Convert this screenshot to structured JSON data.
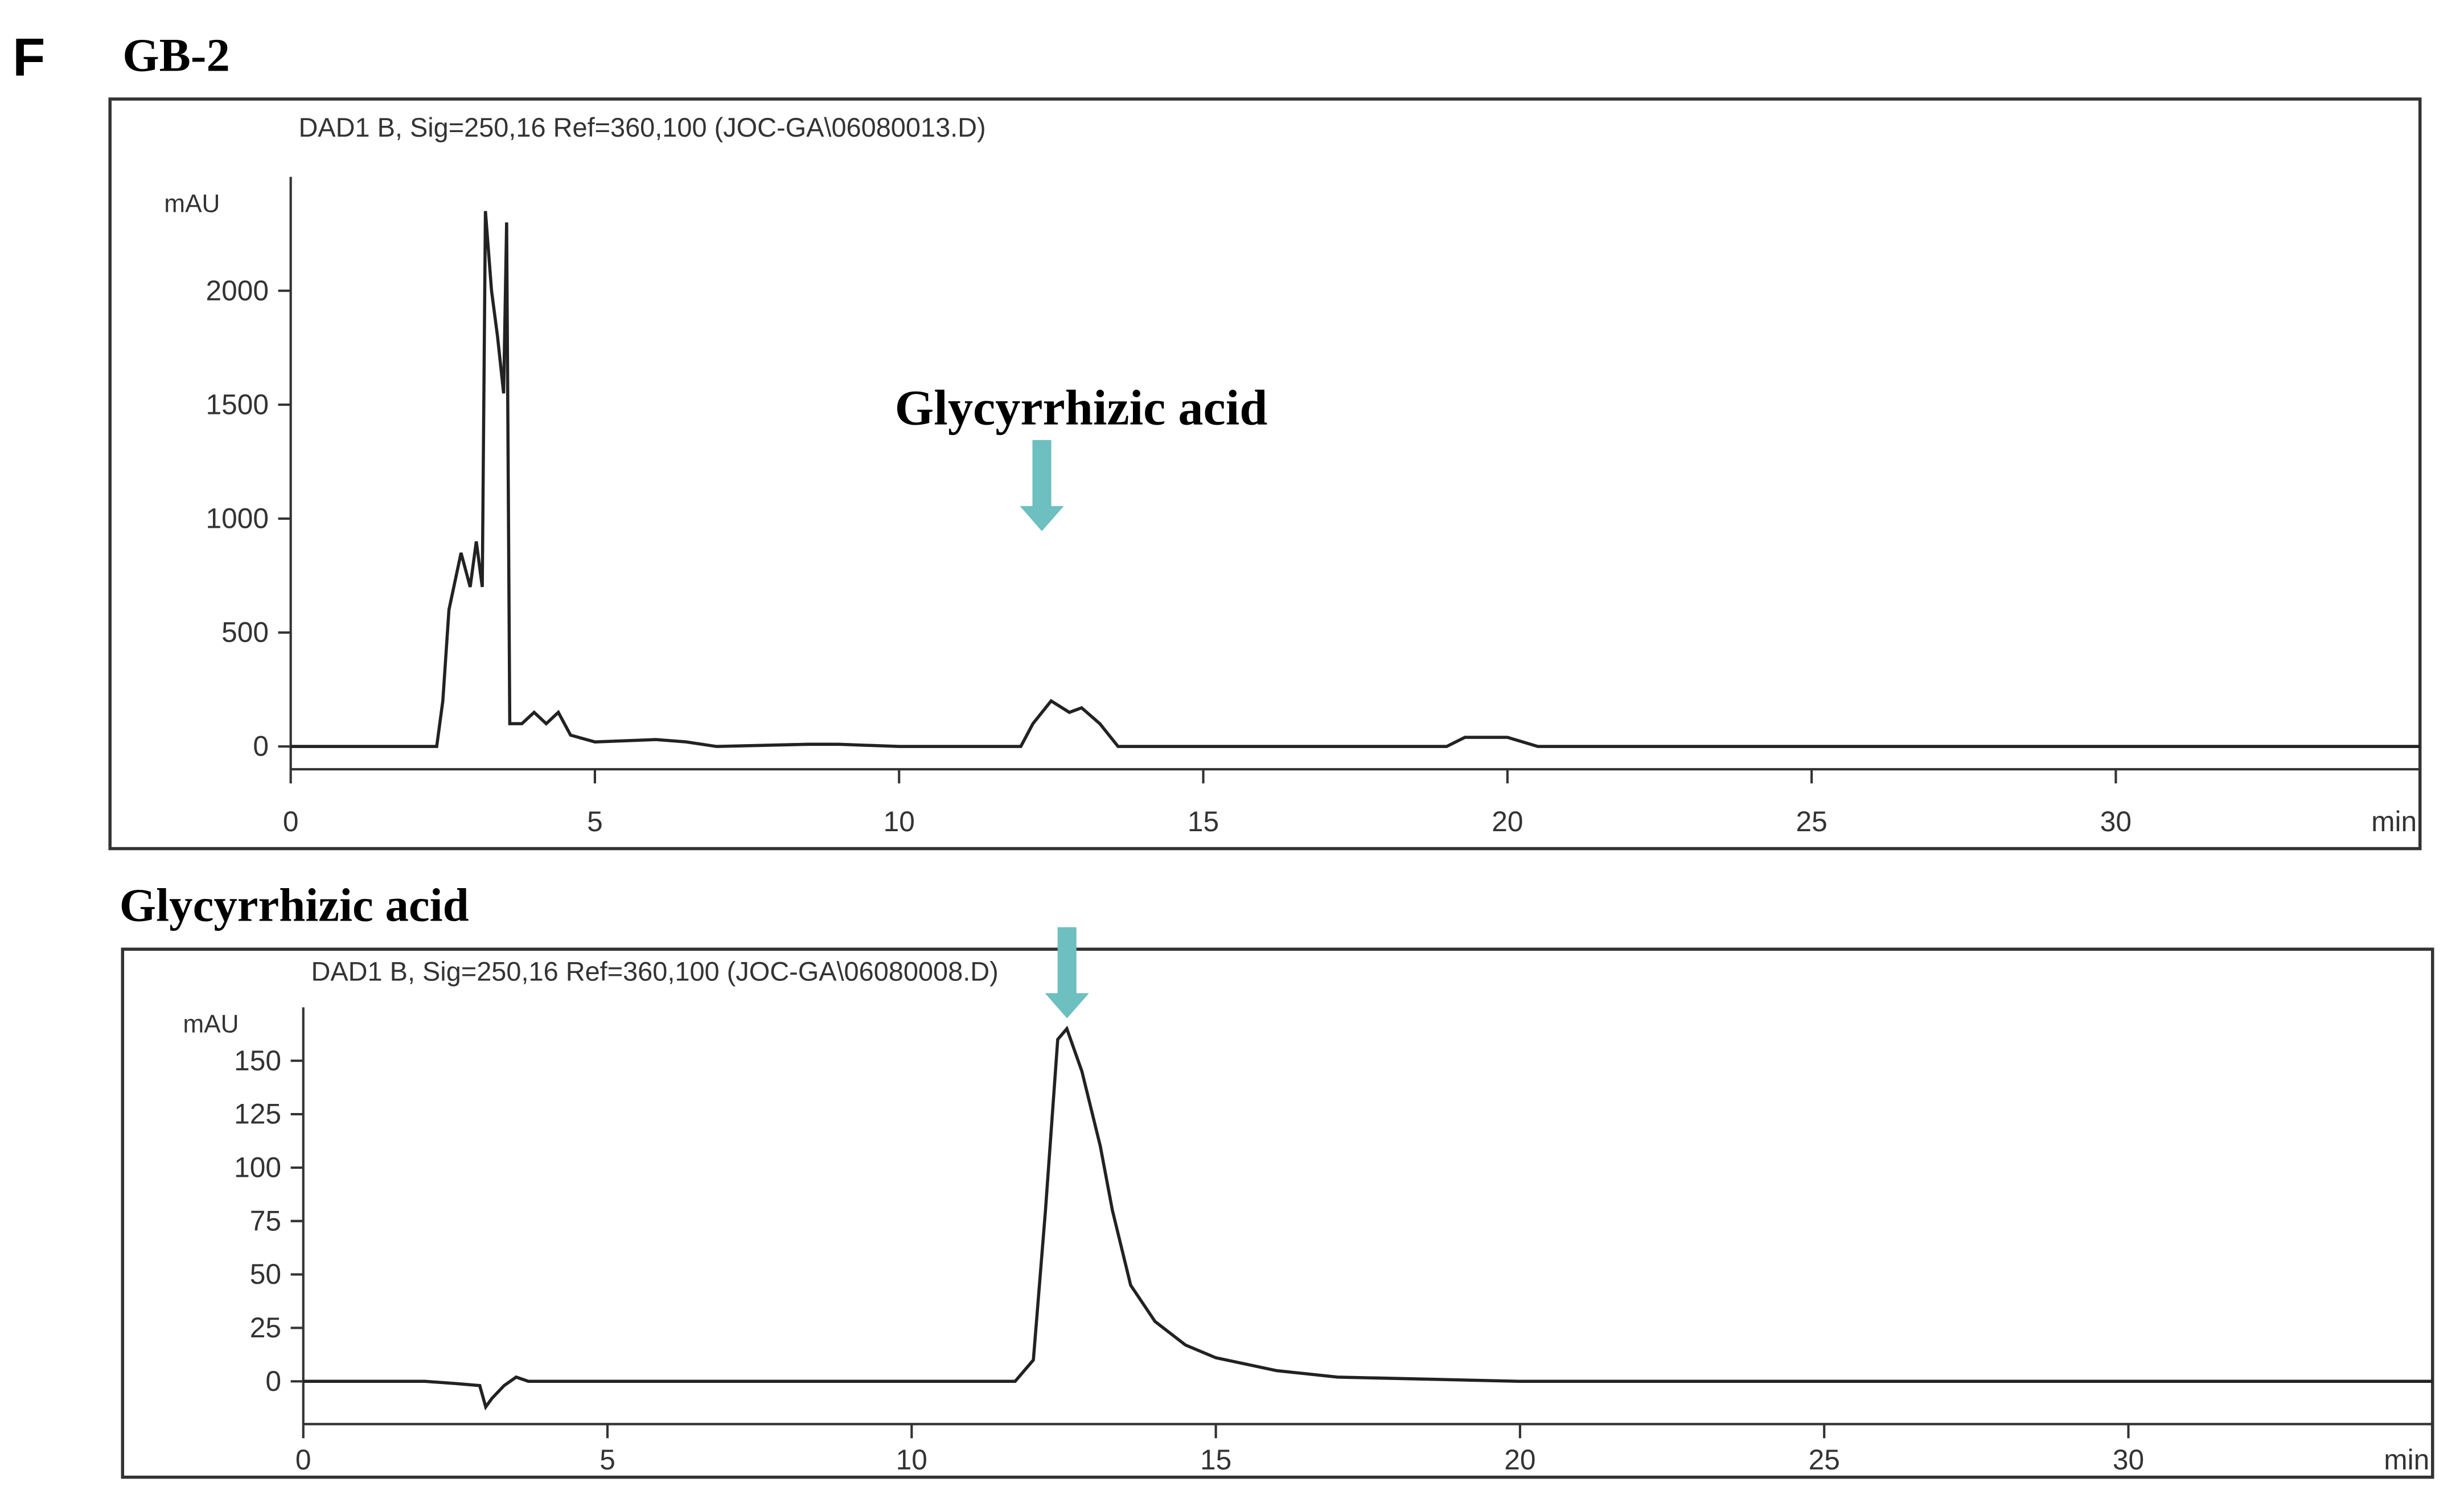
{
  "panel_label": "F",
  "chart_data": [
    {
      "type": "line",
      "title": "GB-2",
      "subtitle": "DAD1 B, Sig=250,16 Ref=360,100 (JOC-GA\\06080013.D)",
      "y_label": "mAU",
      "x_label": "min",
      "annotation": "Glycyrrhizic acid",
      "color": "#222222",
      "x": [
        0,
        2.4,
        2.5,
        2.6,
        2.8,
        2.95,
        3.05,
        3.15,
        3.2,
        3.3,
        3.4,
        3.5,
        3.55,
        3.6,
        3.8,
        4.0,
        4.2,
        4.4,
        4.6,
        5,
        6,
        6.5,
        7,
        8.5,
        9,
        10,
        12,
        12.2,
        12.5,
        12.8,
        13.0,
        13.3,
        13.6,
        19,
        19.3,
        20,
        20.5,
        35
      ],
      "values": [
        0,
        0,
        200,
        600,
        850,
        700,
        900,
        700,
        2350,
        2000,
        1800,
        1550,
        2300,
        100,
        100,
        150,
        100,
        150,
        50,
        20,
        30,
        20,
        0,
        10,
        10,
        0,
        0,
        100,
        200,
        150,
        170,
        100,
        0,
        0,
        40,
        40,
        0,
        0
      ],
      "xlim": [
        0,
        35
      ],
      "xticks": [
        0,
        5,
        10,
        15,
        20,
        25,
        30
      ],
      "ylim": [
        -100,
        2500
      ],
      "yticks": [
        0,
        500,
        1000,
        1500,
        2000
      ]
    },
    {
      "type": "line",
      "title": "Glycyrrhizic acid",
      "subtitle": "DAD1 B, Sig=250,16 Ref=360,100 (JOC-GA\\06080008.D)",
      "y_label": "mAU",
      "x_label": "min",
      "color": "#222222",
      "x": [
        0,
        2,
        2.5,
        2.9,
        3.0,
        3.1,
        3.3,
        3.5,
        3.7,
        7.5,
        10,
        11.7,
        12.0,
        12.2,
        12.4,
        12.55,
        12.8,
        13.1,
        13.3,
        13.6,
        14,
        14.5,
        15,
        16,
        17,
        20,
        35
      ],
      "values": [
        0,
        0,
        -1,
        -2,
        -12,
        -8,
        -2,
        2,
        0,
        0,
        0,
        0,
        10,
        80,
        160,
        165,
        145,
        110,
        80,
        45,
        28,
        17,
        11,
        5,
        2,
        0,
        0
      ],
      "xlim": [
        0,
        35
      ],
      "xticks": [
        0,
        5,
        10,
        15,
        20,
        25,
        30
      ],
      "ylim": [
        -20,
        175
      ],
      "yticks": [
        0,
        25,
        50,
        75,
        100,
        125,
        150
      ]
    }
  ]
}
